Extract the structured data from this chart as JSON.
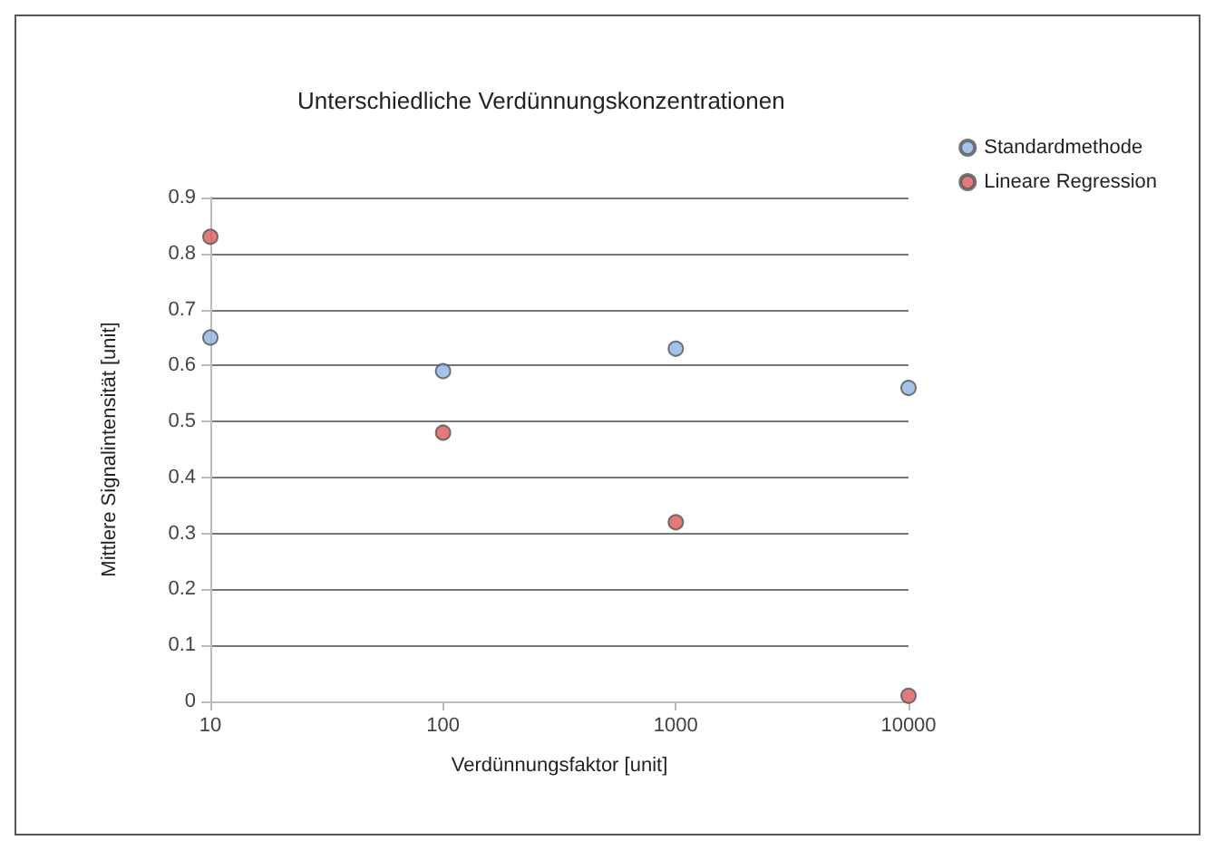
{
  "chart_data": {
    "type": "scatter",
    "title": "Unterschiedliche Verdünnungskonzentrationen",
    "xlabel": "Verdünnungsfaktor [unit]",
    "ylabel": "Mittlere Signalintensität [unit]",
    "x": [
      10,
      100,
      1000,
      10000
    ],
    "series": [
      {
        "name": "Standardmethode",
        "color": "#8eb4e3",
        "values": [
          0.65,
          0.59,
          0.63,
          0.56
        ]
      },
      {
        "name": "Lineare Regression",
        "color": "#d9595a",
        "values": [
          0.83,
          0.48,
          0.32,
          0.01
        ]
      }
    ],
    "log": "x",
    "xlim": [
      10,
      10000
    ],
    "xticks": [
      10,
      100,
      1000,
      10000
    ],
    "ylim": [
      0,
      0.9
    ],
    "yticks": [
      0,
      0.1,
      0.2,
      0.3,
      0.4,
      0.5,
      0.6,
      0.7,
      0.8,
      0.9
    ],
    "grid": "y",
    "legend": "top right",
    "marker": "circle"
  }
}
